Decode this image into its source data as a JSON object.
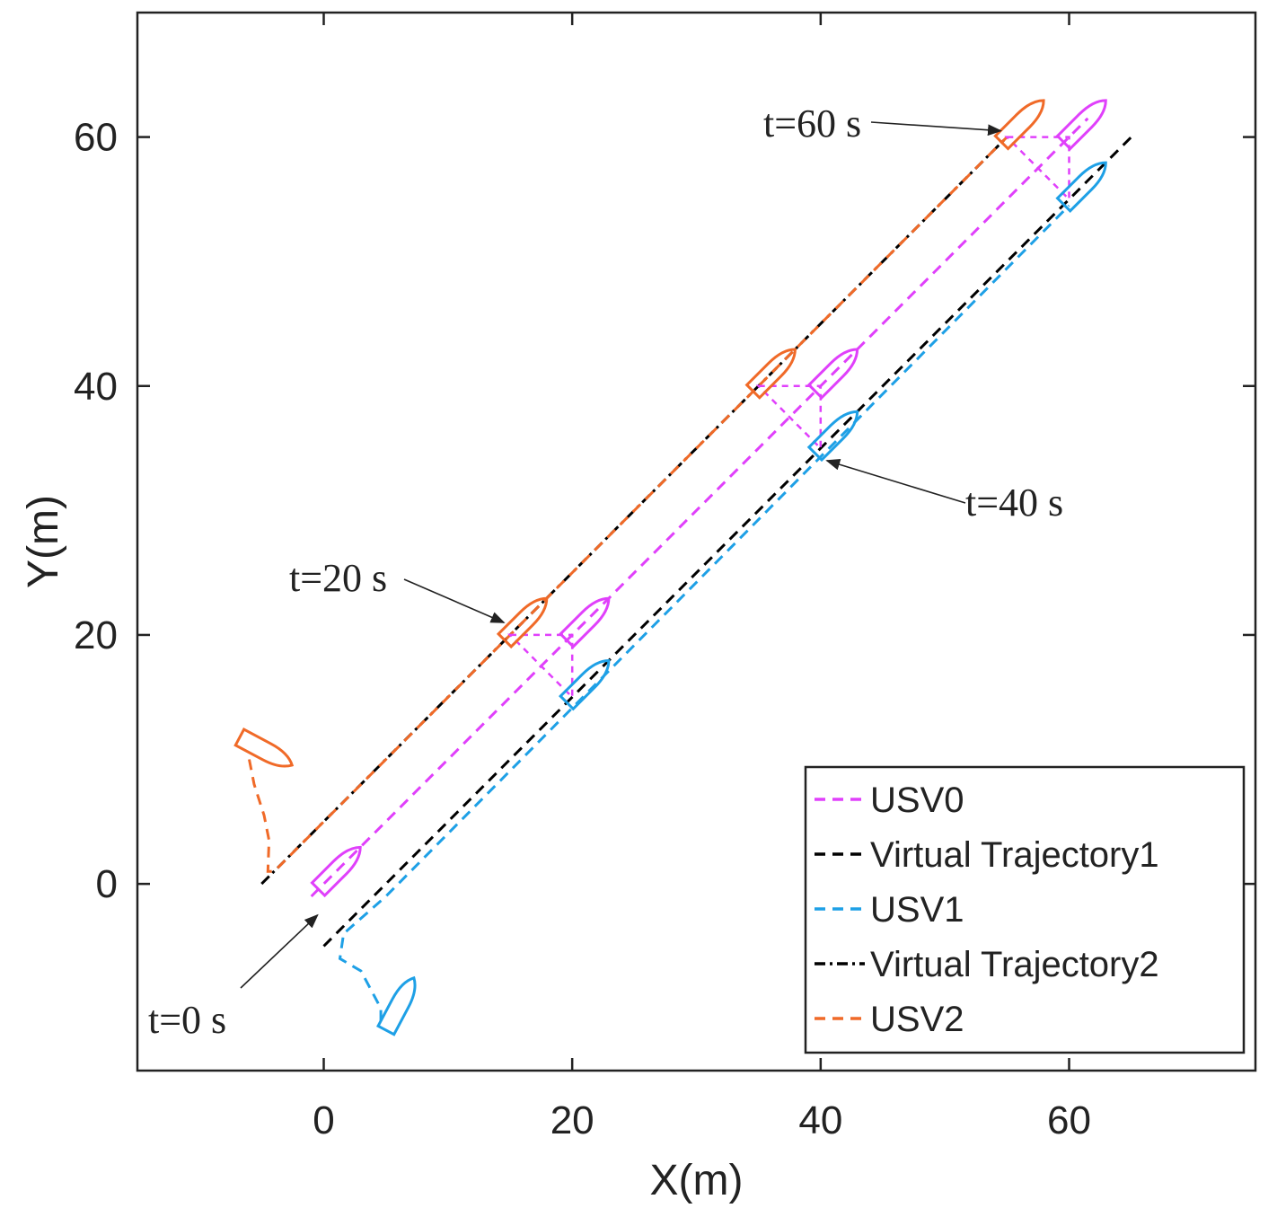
{
  "chart_data": {
    "type": "line",
    "xlabel": "X(m)",
    "ylabel": "Y(m)",
    "xlim": [
      -15,
      75
    ],
    "ylim": [
      -15,
      70
    ],
    "xticks": [
      0,
      20,
      40,
      60
    ],
    "yticks": [
      0,
      20,
      40,
      60
    ],
    "grid": false,
    "colors": {
      "usv0": "#E040FB",
      "usv1": "#1EA0E6",
      "usv2": "#F06A28",
      "virtual": "#000000",
      "axis": "#222222"
    },
    "series": [
      {
        "name": "USV0",
        "key": "usv0",
        "dash": "dashed",
        "x": [
          -1,
          0,
          20,
          40,
          60,
          61.5
        ],
        "y": [
          -1,
          0,
          20,
          40,
          60,
          61.5
        ]
      },
      {
        "name": "Virtual Trajectory1",
        "key": "virtual",
        "dash": "dashed",
        "x": [
          0,
          65
        ],
        "y": [
          -5,
          60
        ]
      },
      {
        "name": "USV1",
        "key": "usv1",
        "dash": "dashed",
        "x": [
          4.6,
          4.6,
          3,
          1.3,
          1.6,
          5,
          60
        ],
        "y": [
          -11,
          -10,
          -7,
          -6,
          -4,
          -1,
          54.5
        ]
      },
      {
        "name": "Virtual Trajectory2",
        "key": "virtual",
        "dash": "dashdot",
        "x": [
          -5,
          55
        ],
        "y": [
          0,
          60
        ]
      },
      {
        "name": "USV2",
        "key": "usv2",
        "dash": "dashed",
        "x": [
          -6,
          -5.6,
          -4.8,
          -4.4,
          -4.5,
          -4,
          55
        ],
        "y": [
          10,
          8,
          5.5,
          3.5,
          1,
          1,
          60
        ]
      }
    ],
    "formation_snapshots": [
      {
        "t": "t=0 s",
        "usv0": [
          0,
          0
        ],
        "usv1": [
          5,
          -11
        ],
        "usv2": [
          -6,
          10
        ]
      },
      {
        "t": "t=20 s",
        "usv0": [
          20,
          20
        ],
        "usv1": [
          20,
          15
        ],
        "usv2": [
          15,
          20
        ]
      },
      {
        "t": "t=40 s",
        "usv0": [
          40,
          40
        ],
        "usv1": [
          40,
          35
        ],
        "usv2": [
          35,
          40
        ]
      },
      {
        "t": "t=60 s",
        "usv0": [
          60,
          60
        ],
        "usv1": [
          60,
          55
        ],
        "usv2": [
          55,
          60
        ]
      }
    ],
    "annotations": [
      {
        "text": "t=0 s",
        "target": [
          -0.5,
          -2.5
        ]
      },
      {
        "text": "t=20 s",
        "target": [
          14.5,
          21
        ]
      },
      {
        "text": "t=40 s",
        "target": [
          40.5,
          34
        ]
      },
      {
        "text": "t=60 s",
        "target": [
          54.5,
          60.5
        ]
      }
    ],
    "legend": {
      "position": "bottom-right",
      "entries": [
        "USV0",
        "Virtual Trajectory1",
        "USV1",
        "Virtual Trajectory2",
        "USV2"
      ]
    }
  }
}
